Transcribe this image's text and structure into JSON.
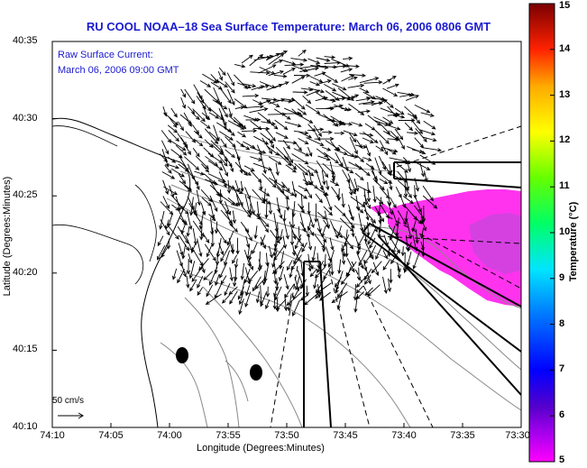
{
  "header": {
    "title": "RU COOL   NOAA–18  Sea Surface Temperature:  March 06, 2006 0806 GMT"
  },
  "overlay": {
    "current_label": "Raw Surface Current:",
    "current_time": "March 06, 2006 09:00 GMT",
    "scale_label": "50 cm/s"
  },
  "colors": {
    "title_text": "#1a1ad0",
    "sst_patch": "#ff33ee",
    "sst_patch_dark": "#cc44dd",
    "contour": "#888888"
  },
  "chart_data": [
    {
      "type": "heatmap",
      "title": "RU COOL   NOAA–18  Sea Surface Temperature:  March 06, 2006 0806 GMT",
      "xlabel": "Longitude (Degrees:Minutes)",
      "ylabel": "Latitude (Degrees:Minutes)",
      "x_ticks": [
        "74:10",
        "74:05",
        "74:00",
        "73:55",
        "73:50",
        "73:45",
        "73:40",
        "73:35",
        "73:30"
      ],
      "y_ticks": [
        "40:10",
        "40:15",
        "40:20",
        "40:25",
        "40:30",
        "40:35"
      ],
      "xlim": [
        -74.1667,
        -73.5
      ],
      "ylim": [
        40.1667,
        40.5833
      ],
      "grid": false,
      "sst_observed_range": [
        5,
        6
      ],
      "annotations": [
        "Raw Surface Current:",
        "March 06, 2006 09:00 GMT",
        "50 cm/s"
      ]
    },
    {
      "type": "heatmap",
      "colorbar_label": "Temperature (°C)",
      "ticks": [
        5,
        6,
        7,
        8,
        9,
        10,
        11,
        12,
        13,
        14,
        15
      ],
      "range": [
        5,
        15
      ],
      "colormap": [
        "#ff00ff",
        "#5500cc",
        "#0000ff",
        "#0088ff",
        "#00ffff",
        "#00ff44",
        "#aaff00",
        "#ffff00",
        "#ffaa00",
        "#ff2200",
        "#880000"
      ]
    }
  ]
}
